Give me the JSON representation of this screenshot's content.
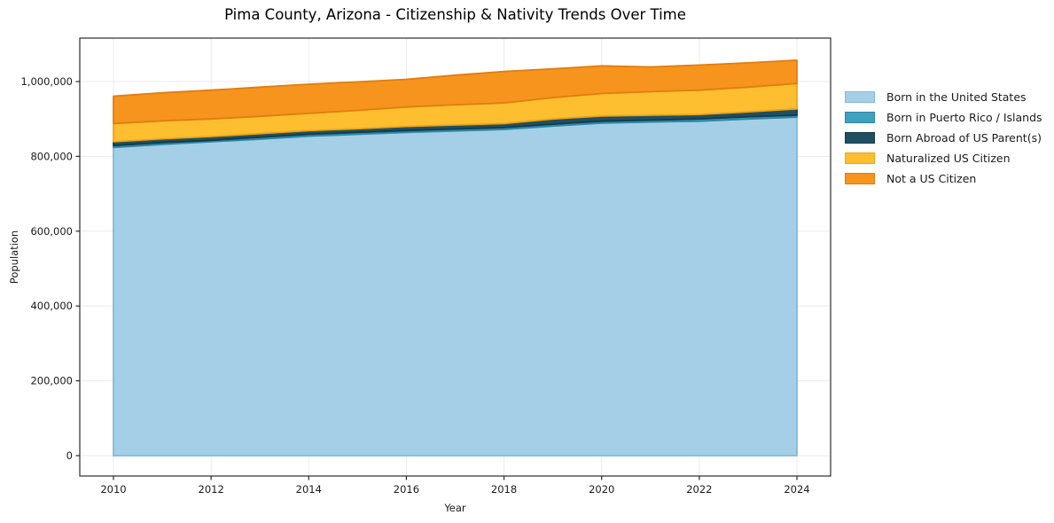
{
  "chart_data": {
    "type": "area",
    "stacked": true,
    "title": "Pima County, Arizona - Citizenship & Nativity Trends Over Time",
    "xlabel": "Year",
    "ylabel": "Population",
    "x": [
      2010,
      2011,
      2012,
      2013,
      2014,
      2015,
      2016,
      2017,
      2018,
      2019,
      2020,
      2021,
      2022,
      2023,
      2024
    ],
    "series": [
      {
        "name": "Born in the United States",
        "color": "#a5cfe6",
        "edge": "#82b9d8",
        "values": [
          824000,
          832000,
          839000,
          846000,
          854000,
          859000,
          864000,
          868000,
          872000,
          881000,
          889000,
          892000,
          894000,
          900000,
          905000
        ]
      },
      {
        "name": "Born in Puerto Rico / Islands",
        "color": "#3fa0c0",
        "edge": "#2c87a6",
        "values": [
          5000,
          5000,
          4000,
          5000,
          5000,
          5000,
          5000,
          5000,
          5000,
          5000,
          5000,
          5000,
          6000,
          6000,
          5000
        ]
      },
      {
        "name": "Born Abroad of US Parent(s)",
        "color": "#204f63",
        "edge": "#153a4a",
        "values": [
          10000,
          10000,
          10000,
          10000,
          10000,
          10000,
          11000,
          11000,
          11000,
          14000,
          14000,
          13000,
          12000,
          13000,
          17000
        ]
      },
      {
        "name": "Naturalized US Citizen",
        "color": "#fdbf2f",
        "edge": "#eda413",
        "values": [
          49000,
          48000,
          47000,
          46000,
          46000,
          49000,
          52000,
          54000,
          55000,
          57000,
          60000,
          63000,
          65000,
          66000,
          68000
        ]
      },
      {
        "name": "Not a US Citizen",
        "color": "#f7941e",
        "edge": "#e07e0d",
        "values": [
          73000,
          75000,
          77000,
          78000,
          78000,
          76000,
          74000,
          79000,
          84000,
          77000,
          74000,
          66000,
          67000,
          65000,
          62000
        ]
      }
    ],
    "xticks": [
      2010,
      2012,
      2014,
      2016,
      2018,
      2020,
      2022,
      2024
    ],
    "xticklabels": [
      "2010",
      "2012",
      "2014",
      "2016",
      "2018",
      "2020",
      "2022",
      "2024"
    ],
    "yticks": [
      0,
      200000,
      400000,
      600000,
      800000,
      1000000
    ],
    "yticklabels": [
      "0",
      "200,000",
      "400,000",
      "600,000",
      "800,000",
      "1,000,000"
    ],
    "xlim": [
      2009.31,
      2024.69
    ],
    "ylim": [
      0,
      1118000
    ],
    "grid": true,
    "legend_position": "right"
  }
}
